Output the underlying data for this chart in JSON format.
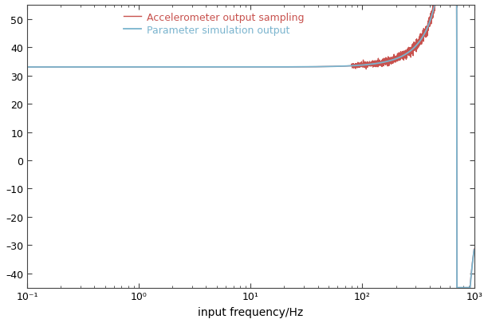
{
  "title": "",
  "xlabel": "input frequency/Hz",
  "ylabel": "",
  "xlim": [
    0.1,
    1000.0
  ],
  "ylim": [
    -45,
    55
  ],
  "yticks": [
    -40,
    -30,
    -20,
    -10,
    0,
    10,
    20,
    30,
    40,
    50
  ],
  "xtick_vals": [
    0.1,
    1.0,
    10.0,
    100.0,
    1000.0
  ],
  "red_color": "#c8524e",
  "blue_color": "#7ab4ce",
  "legend_red": "Accelerometer output sampling",
  "legend_blue": "Parameter simulation output",
  "fn_blue": 700.0,
  "fn_red": 700.0,
  "zeta_blue": 0.022,
  "zeta_red": 0.038,
  "scale": 33.0,
  "noise_seed": 42,
  "noise_start_hz": 80,
  "noise_amplitude": 0.4,
  "background_color": "#ffffff",
  "spine_color": "#444444",
  "tick_color": "#444444",
  "fontsize_tick": 9,
  "fontsize_label": 10,
  "fontsize_legend": 9,
  "linewidth_blue": 1.3,
  "linewidth_red": 1.0
}
